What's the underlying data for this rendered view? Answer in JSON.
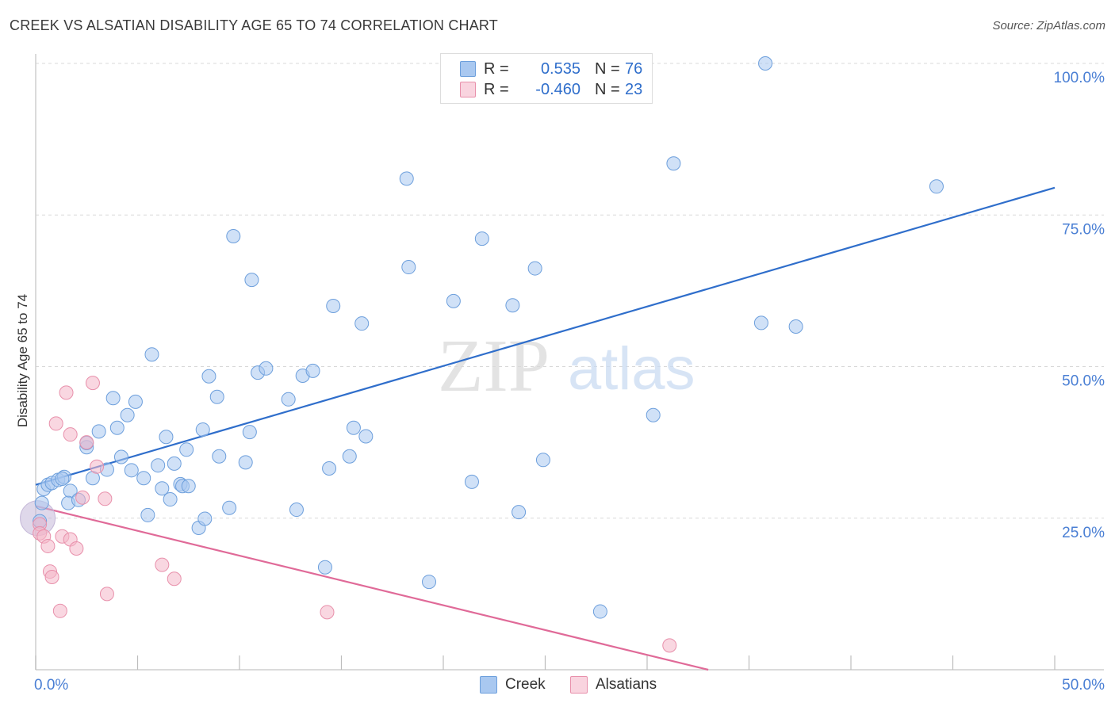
{
  "header": {
    "title": "CREEK VS ALSATIAN DISABILITY AGE 65 TO 74 CORRELATION CHART",
    "source": "Source: ZipAtlas.com"
  },
  "watermark": {
    "zip": "ZIP",
    "atlas": "atlas"
  },
  "legend": {
    "rows": [
      {
        "r_label": "R =",
        "r_value": "0.535",
        "n_label": "N =",
        "n_value": "76",
        "color": "#a9c8f0"
      },
      {
        "r_label": "R =",
        "r_value": "-0.460",
        "n_label": "N =",
        "n_value": "23",
        "color": "#f4b7c9"
      }
    ]
  },
  "bottom_legend": {
    "creek": "Creek",
    "alsatians": "Alsatians"
  },
  "colors": {
    "creek_fill": "#a9c8f0",
    "creek_stroke": "#6d9fdc",
    "creek_line": "#2f6ecb",
    "als_fill": "#f4b7c9",
    "als_stroke": "#e890ab",
    "als_line": "#e06a98",
    "tick_text": "#4a7fd4"
  },
  "chart_data": {
    "type": "scatter",
    "title": "CREEK VS ALSATIAN DISABILITY AGE 65 TO 74 CORRELATION CHART",
    "xlabel": "",
    "ylabel": "Disability Age 65 to 74",
    "xlim": [
      0,
      50
    ],
    "ylim": [
      0,
      100
    ],
    "x_tick_labels": [
      "0.0%",
      "50.0%"
    ],
    "y_tick_labels": [
      "100.0%",
      "75.0%",
      "50.0%",
      "25.0%"
    ],
    "y_tick_values": [
      100,
      75,
      50,
      25
    ],
    "grid": "horizontal dashed",
    "legend_position": "top-center",
    "series": [
      {
        "name": "Creek",
        "r": 0.535,
        "n": 76,
        "trend": {
          "x": [
            0,
            50
          ],
          "y": [
            30.5,
            79.5
          ]
        },
        "points": [
          [
            0.4,
            29.8
          ],
          [
            0.3,
            27.5
          ],
          [
            0.6,
            30.5
          ],
          [
            0.8,
            30.8
          ],
          [
            1.1,
            31.3
          ],
          [
            1.4,
            31.8
          ],
          [
            1.7,
            29.5
          ],
          [
            1.6,
            27.5
          ],
          [
            2.1,
            28.0
          ],
          [
            2.5,
            36.7
          ],
          [
            2.8,
            31.6
          ],
          [
            3.1,
            39.3
          ],
          [
            3.5,
            33.0
          ],
          [
            3.8,
            44.8
          ],
          [
            4.0,
            39.9
          ],
          [
            4.2,
            35.1
          ],
          [
            4.5,
            42.0
          ],
          [
            4.7,
            32.9
          ],
          [
            4.9,
            44.2
          ],
          [
            5.3,
            31.6
          ],
          [
            5.5,
            25.5
          ],
          [
            5.7,
            52.0
          ],
          [
            6.0,
            33.7
          ],
          [
            6.2,
            29.9
          ],
          [
            6.4,
            38.4
          ],
          [
            6.6,
            28.1
          ],
          [
            6.8,
            34.0
          ],
          [
            7.1,
            30.6
          ],
          [
            7.2,
            30.3
          ],
          [
            7.5,
            30.3
          ],
          [
            7.4,
            36.3
          ],
          [
            8.0,
            23.4
          ],
          [
            8.2,
            39.6
          ],
          [
            8.3,
            24.9
          ],
          [
            8.5,
            48.4
          ],
          [
            8.9,
            45.0
          ],
          [
            9.0,
            35.2
          ],
          [
            9.5,
            26.7
          ],
          [
            9.7,
            71.5
          ],
          [
            10.3,
            34.2
          ],
          [
            10.5,
            39.2
          ],
          [
            10.6,
            64.3
          ],
          [
            10.9,
            49.0
          ],
          [
            11.3,
            49.7
          ],
          [
            12.4,
            44.6
          ],
          [
            12.8,
            26.4
          ],
          [
            13.1,
            48.5
          ],
          [
            13.6,
            49.3
          ],
          [
            14.2,
            16.9
          ],
          [
            14.4,
            33.2
          ],
          [
            14.6,
            60.0
          ],
          [
            15.4,
            35.2
          ],
          [
            15.6,
            39.9
          ],
          [
            16.0,
            57.1
          ],
          [
            16.2,
            38.5
          ],
          [
            18.2,
            81.0
          ],
          [
            18.3,
            66.4
          ],
          [
            19.3,
            14.5
          ],
          [
            20.5,
            60.8
          ],
          [
            21.4,
            31.0
          ],
          [
            21.9,
            71.1
          ],
          [
            22.6,
            100.0
          ],
          [
            23.4,
            60.1
          ],
          [
            23.7,
            26.0
          ],
          [
            24.5,
            66.2
          ],
          [
            24.9,
            34.6
          ],
          [
            27.7,
            9.6
          ],
          [
            30.3,
            42.0
          ],
          [
            31.3,
            83.5
          ],
          [
            35.6,
            57.2
          ],
          [
            35.8,
            100.0
          ],
          [
            37.3,
            56.6
          ],
          [
            44.2,
            79.7
          ],
          [
            0.2,
            24.5
          ],
          [
            2.5,
            37.4
          ],
          [
            1.3,
            31.5
          ]
        ],
        "big_point": [
          0.1,
          25.0
        ]
      },
      {
        "name": "Alsatians",
        "r": -0.46,
        "n": 23,
        "trend": {
          "x": [
            0,
            33
          ],
          "y": [
            27.0,
            0.0
          ]
        },
        "points": [
          [
            0.2,
            24.0
          ],
          [
            0.2,
            22.5
          ],
          [
            0.4,
            22.0
          ],
          [
            0.6,
            20.4
          ],
          [
            0.7,
            16.2
          ],
          [
            0.8,
            15.3
          ],
          [
            1.0,
            40.6
          ],
          [
            1.2,
            9.7
          ],
          [
            1.3,
            22.0
          ],
          [
            1.5,
            45.7
          ],
          [
            1.7,
            38.8
          ],
          [
            1.7,
            21.5
          ],
          [
            2.0,
            20.0
          ],
          [
            2.3,
            28.4
          ],
          [
            2.5,
            37.5
          ],
          [
            2.8,
            47.3
          ],
          [
            3.0,
            33.5
          ],
          [
            3.4,
            28.2
          ],
          [
            3.5,
            12.5
          ],
          [
            6.2,
            17.3
          ],
          [
            6.8,
            15.0
          ],
          [
            14.3,
            9.5
          ],
          [
            31.1,
            4.0
          ]
        ]
      }
    ]
  }
}
